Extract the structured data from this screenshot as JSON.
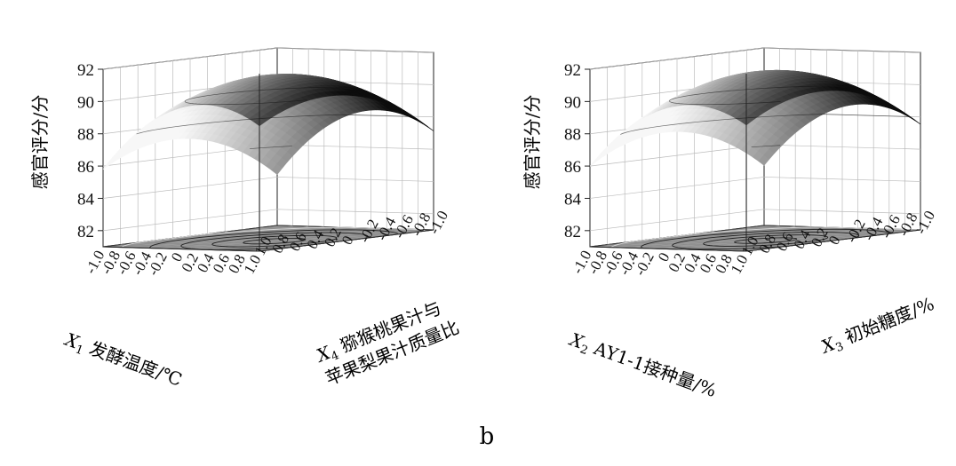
{
  "figure": {
    "panel_label": "b"
  },
  "chart_data": [
    {
      "type": "surface",
      "zlabel": "感官评分/分",
      "zticks": [
        "82",
        "84",
        "86",
        "88",
        "90",
        "92"
      ],
      "zlim": [
        81,
        92
      ],
      "x_axis": {
        "label_main": "X",
        "label_sub": "1",
        "label_rest": " 发酵温度/℃",
        "ticks": [
          "-1.0",
          "-0.8",
          "-0.6",
          "-0.4",
          "-0.2",
          "0",
          "0.2",
          "0.4",
          "0.6",
          "0.8",
          "1.0"
        ]
      },
      "y_axis": {
        "label_main": "X",
        "label_sub": "4",
        "label_rest": " 猕猴桃果汁与",
        "label_line2": "苹果梨果汁质量比",
        "ticks": [
          "-1.0",
          "-0.8",
          "-0.6",
          "-0.4",
          "-0.2",
          "0",
          "0.2",
          "0.4",
          "0.6",
          "0.8",
          "1.0"
        ]
      },
      "surface": {
        "peak_z": 91.3,
        "peak_x": 0.3,
        "peak_y": 0.2,
        "ax": 4.2,
        "ay": 3.5,
        "contour_levels": 5
      },
      "grid": true
    },
    {
      "type": "surface",
      "zlabel": "感官评分/分",
      "zticks": [
        "82",
        "84",
        "86",
        "88",
        "90",
        "92"
      ],
      "zlim": [
        81,
        92
      ],
      "x_axis": {
        "label_main": "X",
        "label_sub": "2",
        "label_rest": " AY1-1接种量/%",
        "ticks": [
          "-1.0",
          "-0.8",
          "-0.6",
          "-0.4",
          "-0.2",
          "0",
          "0.2",
          "0.4",
          "0.6",
          "0.8",
          "1.0"
        ]
      },
      "y_axis": {
        "label_main": "X",
        "label_sub": "3",
        "label_rest": " 初始糖度/%",
        "label_line2": "",
        "ticks": [
          "-1.0",
          "-0.8",
          "-0.6",
          "-0.4",
          "-0.2",
          "0",
          "0.2",
          "0.4",
          "0.6",
          "0.8",
          "1.0"
        ]
      },
      "surface": {
        "peak_z": 91.5,
        "peak_x": 0.3,
        "peak_y": 0.15,
        "ax": 4.0,
        "ay": 3.6,
        "contour_levels": 5
      },
      "grid": true
    }
  ]
}
